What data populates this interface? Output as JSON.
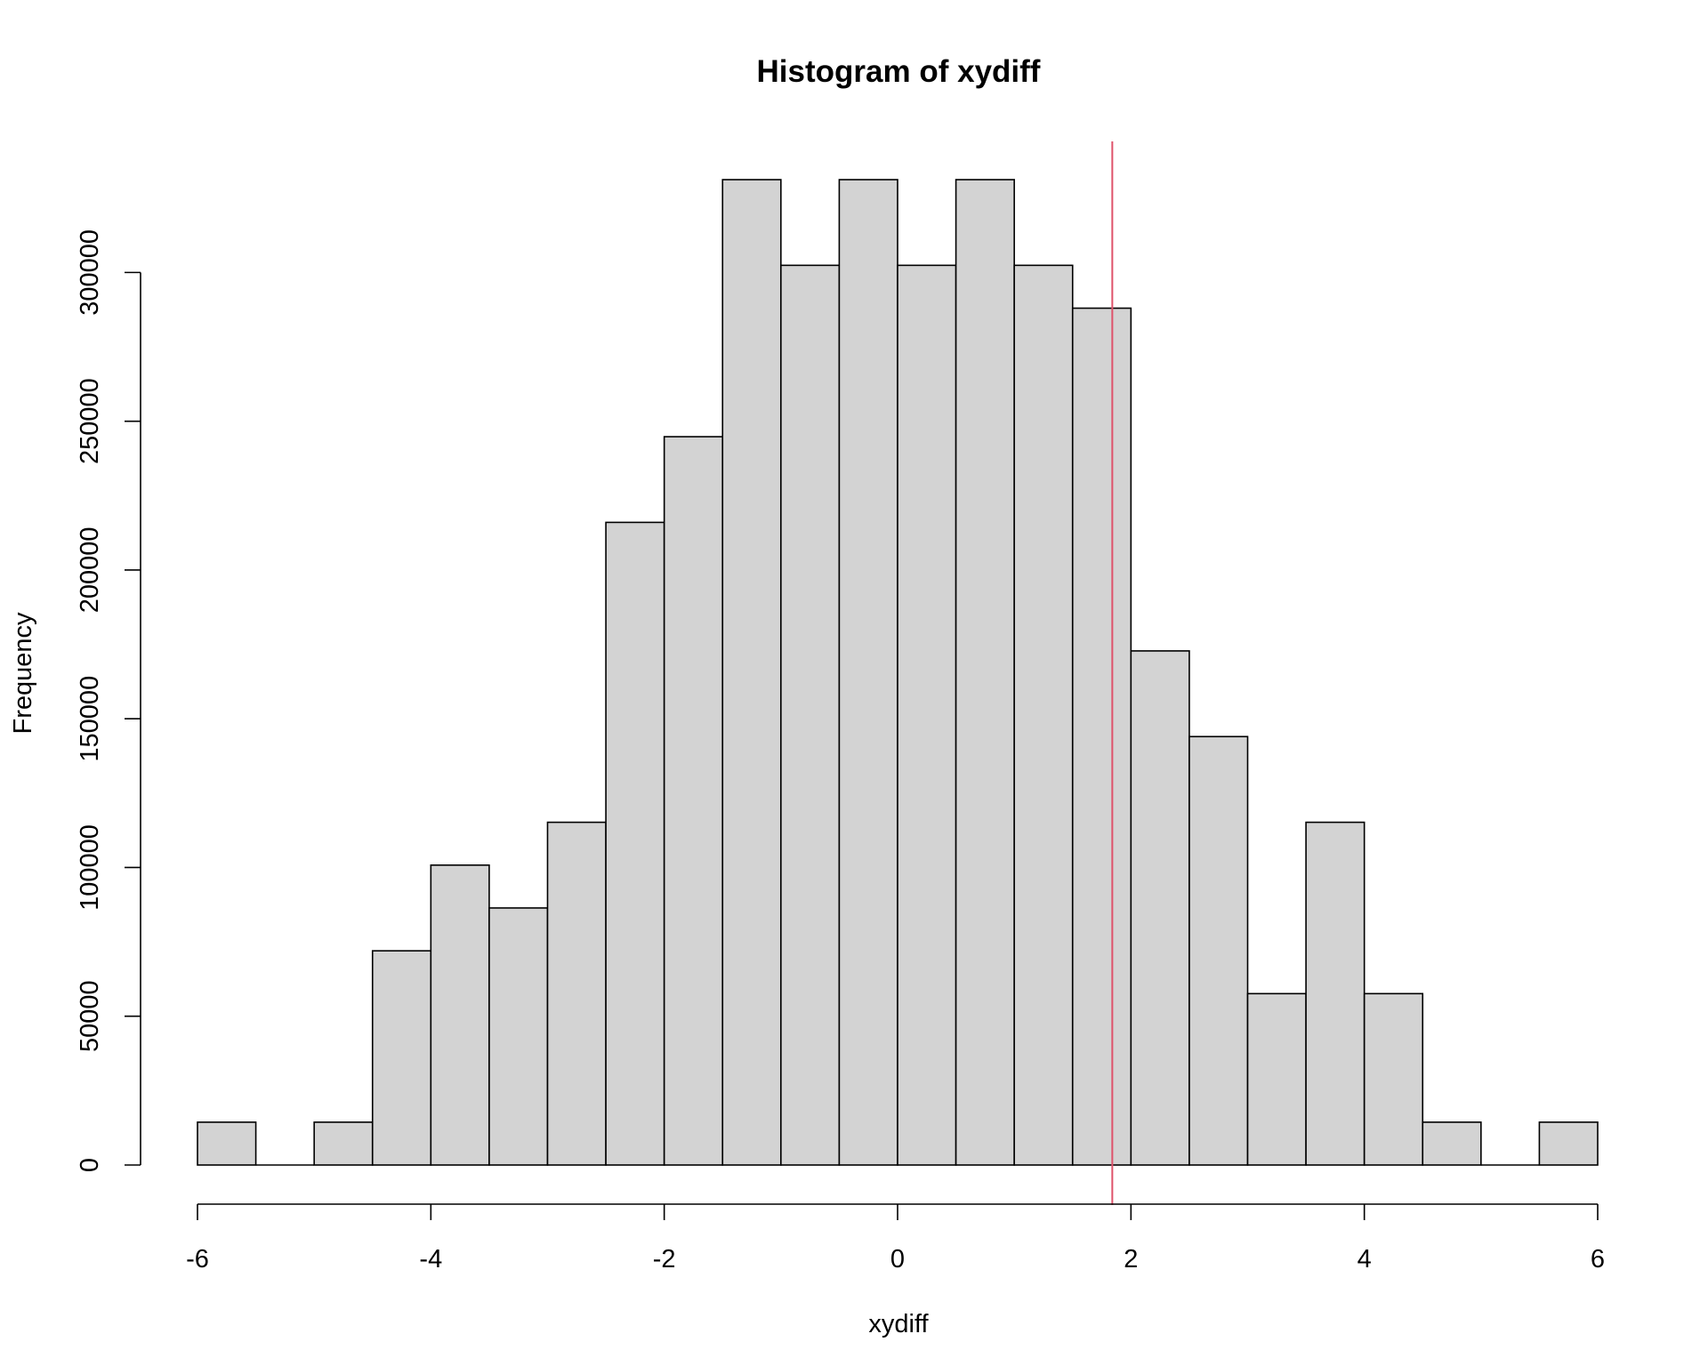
{
  "chart_data": {
    "type": "bar",
    "subtype": "histogram",
    "title": "Histogram of xydiff",
    "xlabel": "xydiff",
    "ylabel": "Frequency",
    "bin_width": 0.5,
    "x": [
      -5.75,
      -5.25,
      -4.75,
      -4.25,
      -3.75,
      -3.25,
      -2.75,
      -2.25,
      -1.75,
      -1.25,
      -0.75,
      -0.25,
      0.25,
      0.75,
      1.25,
      1.75,
      2.25,
      2.75,
      3.25,
      3.75,
      4.25,
      4.75,
      5.25,
      5.75
    ],
    "values": [
      14400,
      0,
      14400,
      72000,
      100800,
      86400,
      115200,
      216000,
      244800,
      331200,
      302400,
      331200,
      302400,
      331200,
      302400,
      288000,
      172800,
      144000,
      57600,
      115200,
      57600,
      14400,
      0,
      14400
    ],
    "xlim": [
      -6,
      6
    ],
    "ylim": [
      0,
      331200
    ],
    "x_ticks": [
      -6,
      -4,
      -2,
      0,
      2,
      4,
      6
    ],
    "x_tick_labels": [
      "-6",
      "-4",
      "-2",
      "0",
      "2",
      "4",
      "6"
    ],
    "y_ticks": [
      0,
      50000,
      100000,
      150000,
      200000,
      250000,
      300000
    ],
    "y_tick_labels": [
      "0",
      "50000",
      "100000",
      "150000",
      "200000",
      "250000",
      "300000"
    ],
    "vline": {
      "x": 1.84,
      "color": "#DF536B"
    },
    "bar_fill": "#D3D3D3",
    "bar_stroke": "#000000",
    "grid": false,
    "legend": "none"
  }
}
